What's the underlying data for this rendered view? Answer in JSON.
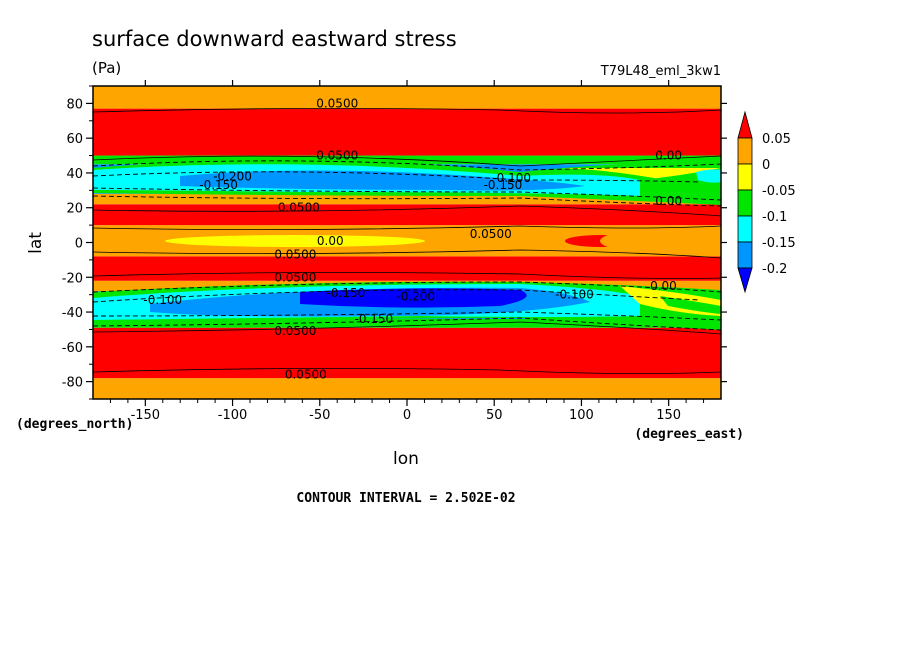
{
  "chart_data": {
    "type": "heatmap",
    "title": "surface downward eastward stress",
    "units": "(Pa)",
    "run_label": "T79L48_eml_3kw1",
    "xlabel": "lon",
    "ylabel": "lat",
    "x_units": "(degrees_east)",
    "y_units": "(degrees_north)",
    "xlim": [
      -180,
      180
    ],
    "ylim": [
      -90,
      90
    ],
    "x_ticks": [
      "-150",
      "-100",
      "-50",
      "0",
      "50",
      "100",
      "150"
    ],
    "y_ticks": [
      "80",
      "60",
      "40",
      "20",
      "0",
      "-20",
      "-40",
      "-60",
      "-80"
    ],
    "x_tick_values": [
      -150,
      -100,
      -50,
      0,
      50,
      100,
      150
    ],
    "y_tick_values": [
      80,
      60,
      40,
      20,
      0,
      -20,
      -40,
      -60,
      -80
    ],
    "contour_interval": "CONTOUR INTERVAL = 2.502E-02",
    "colorbar": {
      "labels": [
        "0.05",
        "0",
        "-0.05",
        "-0.1",
        "-0.15",
        "-0.2"
      ],
      "levels": [
        0.05,
        0,
        -0.05,
        -0.1,
        -0.15,
        -0.2
      ],
      "colors": [
        "#ff0000",
        "#ffa500",
        "#ffff00",
        "#00e600",
        "#00ffff",
        "#0096ff",
        "#0000ff"
      ]
    },
    "zonal_bands": [
      {
        "lat_range": [
          -90,
          -78
        ],
        "level": "0 to 0.05",
        "color": "#ffa500"
      },
      {
        "lat_range": [
          -78,
          -49
        ],
        "level": "> 0.05",
        "color": "#ff0000"
      },
      {
        "lat_range": [
          -49,
          -44
        ],
        "level": "-0.05 to -0.1",
        "color": "#00e600"
      },
      {
        "lat_range": [
          -44,
          -28
        ],
        "level": "-0.1 to -0.2",
        "color": "#0096ff"
      },
      {
        "lat_range": [
          -28,
          -22
        ],
        "level": "0 to 0.05",
        "color": "#ffa500"
      },
      {
        "lat_range": [
          -22,
          -8
        ],
        "level": "> 0.05",
        "color": "#ff0000"
      },
      {
        "lat_range": [
          -8,
          10
        ],
        "level": "0 to 0.05",
        "color": "#ffa500"
      },
      {
        "lat_range": [
          10,
          22
        ],
        "level": "> 0.05",
        "color": "#ff0000"
      },
      {
        "lat_range": [
          22,
          28
        ],
        "level": "0 to 0.05",
        "color": "#ffa500"
      },
      {
        "lat_range": [
          28,
          45
        ],
        "level": "-0.1 to -0.2",
        "color": "#0096ff"
      },
      {
        "lat_range": [
          45,
          50
        ],
        "level": "-0.05 to -0.1",
        "color": "#00e600"
      },
      {
        "lat_range": [
          50,
          77
        ],
        "level": "> 0.05",
        "color": "#ff0000"
      },
      {
        "lat_range": [
          77,
          90
        ],
        "level": "0 to 0.05",
        "color": "#ffa500"
      }
    ],
    "contour_labels": [
      {
        "text": "0.0500",
        "lon": -40,
        "lat": 80
      },
      {
        "text": "0.0500",
        "lon": -40,
        "lat": 50
      },
      {
        "text": "0.00",
        "lon": 150,
        "lat": 50
      },
      {
        "text": "-0.200",
        "lon": -100,
        "lat": 38
      },
      {
        "text": "-0.150",
        "lon": -108,
        "lat": 33
      },
      {
        "text": "-0.100",
        "lon": 60,
        "lat": 37
      },
      {
        "text": "-0.150",
        "lon": 55,
        "lat": 33
      },
      {
        "text": "0.0500",
        "lon": -62,
        "lat": 20
      },
      {
        "text": "0.00",
        "lon": 150,
        "lat": 24
      },
      {
        "text": "0.00",
        "lon": -44,
        "lat": 1
      },
      {
        "text": "0.0500",
        "lon": 48,
        "lat": 5
      },
      {
        "text": "0.0500",
        "lon": -64,
        "lat": -7
      },
      {
        "text": "0.0500",
        "lon": -64,
        "lat": -20
      },
      {
        "text": "0.00",
        "lon": 147,
        "lat": -25
      },
      {
        "text": "-0.150",
        "lon": -35,
        "lat": -29
      },
      {
        "text": "-0.200",
        "lon": 5,
        "lat": -31
      },
      {
        "text": "-0.100",
        "lon": -140,
        "lat": -33
      },
      {
        "text": "-0.100",
        "lon": 96,
        "lat": -30
      },
      {
        "text": "-0.150",
        "lon": -19,
        "lat": -44
      },
      {
        "text": "0.0500",
        "lon": -64,
        "lat": -51
      },
      {
        "text": "0.0500",
        "lon": -58,
        "lat": -76
      }
    ]
  }
}
